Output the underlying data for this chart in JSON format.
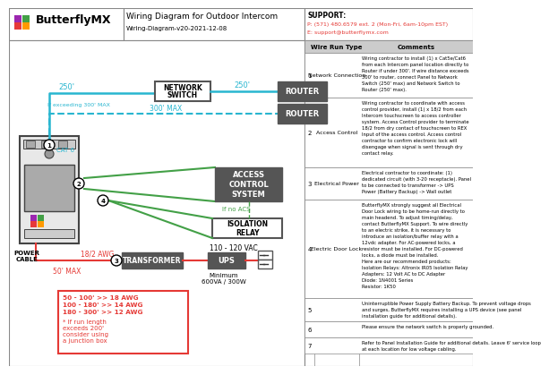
{
  "title": "Wiring Diagram for Outdoor Intercom",
  "subtitle": "Wiring-Diagram-v20-2021-12-08",
  "support_label": "SUPPORT:",
  "support_phone": "P: (571) 480.6579 ext. 2 (Mon-Fri, 6am-10pm EST)",
  "support_email": "E: support@butterflymx.com",
  "cyan": "#29b6d0",
  "red": "#e53935",
  "green": "#43a047",
  "dark_box": "#555555",
  "table_rows": [
    [
      "1",
      "Network Connection",
      "Wiring contractor to install (1) x Cat5e/Cat6\nfrom each Intercom panel location directly to\nRouter if under 300'. If wire distance exceeds\n300' to router, connect Panel to Network\nSwitch (250' max) and Network Switch to\nRouter (250' max)."
    ],
    [
      "2",
      "Access Control",
      "Wiring contractor to coordinate with access\ncontrol provider, install (1) x 18/2 from each\nIntercom touchscreen to access controller\nsystem. Access Control provider to terminate\n18/2 from dry contact of touchscreen to REX\nInput of the access control. Access control\ncontractor to confirm electronic lock will\ndisengage when signal is sent through dry\ncontact relay."
    ],
    [
      "3",
      "Electrical Power",
      "Electrical contractor to coordinate: (1)\ndedicated circuit (with 3-20 receptacle). Panel\nto be connected to transformer -> UPS\nPower (Battery Backup) -> Wall outlet"
    ],
    [
      "4",
      "Electric Door Lock",
      "ButterflyMX strongly suggest all Electrical\nDoor Lock wiring to be home-run directly to\nmain headend. To adjust timing/delay,\ncontact ButterflyMX Support. To wire directly\nto an electric strike, it is necessary to\nintroduce an isolation/buffer relay with a\n12vdc adapter. For AC-powered locks, a\nresistor must be installed. For DC-powered\nlocks, a diode must be installed.\nHere are our recommended products:\nIsolation Relays: Altronix IR05 Isolation Relay\nAdapters: 12 Volt AC to DC Adapter\nDiode: 1N4001 Series\nResistor: 1K50"
    ],
    [
      "5",
      "",
      "Uninterruptible Power Supply Battery Backup. To prevent voltage drops\nand surges, ButterflyMX requires installing a UPS device (see panel\ninstallation guide for additional details)."
    ],
    [
      "6",
      "",
      "Please ensure the network switch is properly grounded."
    ],
    [
      "7",
      "",
      "Refer to Panel Installation Guide for additional details. Leave 6' service loop\nat each location for low voltage cabling."
    ]
  ],
  "awg_lines_bold": [
    "50 - 100' >> 18 AWG",
    "100 - 180' >> 14 AWG",
    "180 - 300' >> 12 AWG"
  ],
  "awg_lines_normal": [
    "* If run length",
    "exceeds 200'",
    "consider using",
    "a junction box"
  ]
}
